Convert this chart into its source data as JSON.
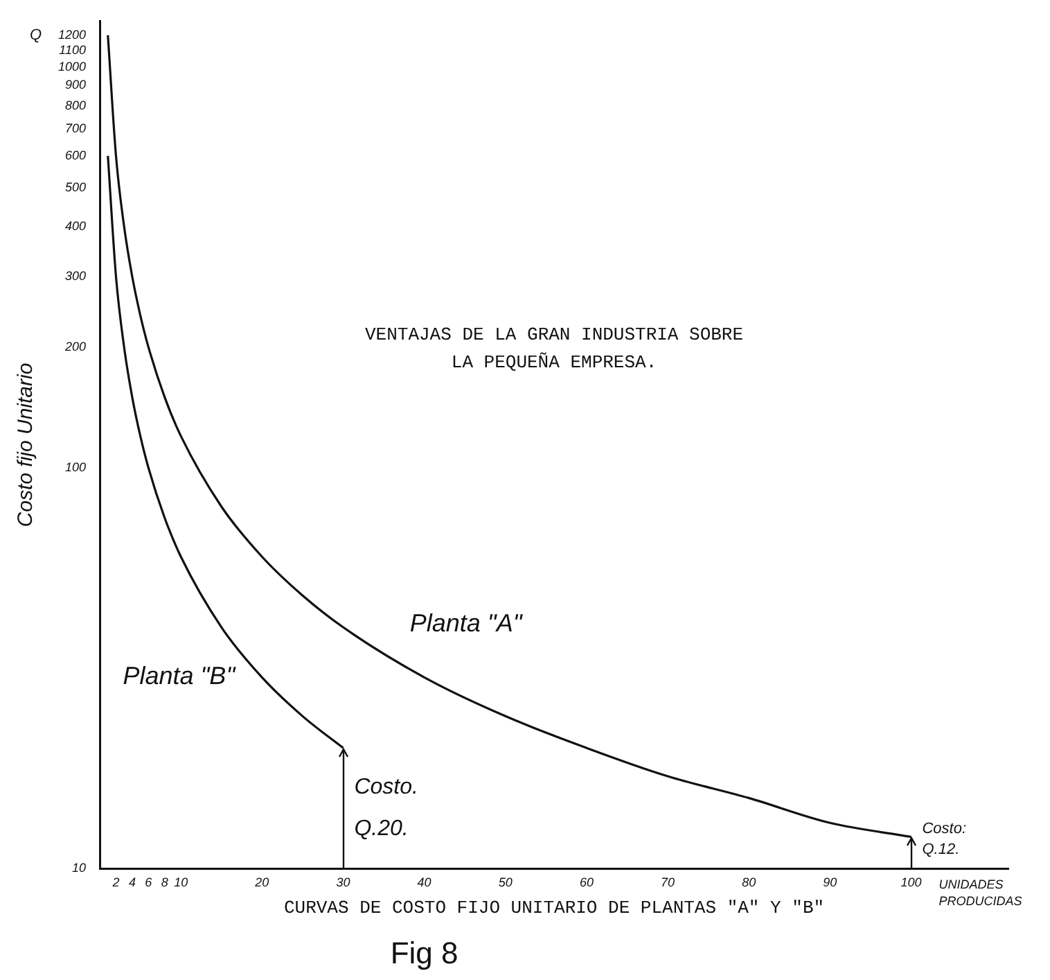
{
  "chart_data": {
    "type": "line",
    "title": "VENTAJAS DE LA GRAN INDUSTRIA SOBRE\nLA PEQUEÑA EMPRESA.",
    "xlabel": "CURVAS DE COSTO FIJO UNITARIO DE PLANTAS \"A\" Y \"B\"",
    "ylabel": "Costo fijo Unitario",
    "log": "y",
    "xlim": [
      0,
      112
    ],
    "ylim": [
      10,
      1300
    ],
    "xticks": [
      2,
      4,
      6,
      8,
      10,
      20,
      30,
      40,
      50,
      60,
      70,
      80,
      90,
      100
    ],
    "yticks": [
      10,
      100,
      200,
      300,
      400,
      500,
      600,
      700,
      800,
      900,
      1000,
      1100,
      1200
    ],
    "grid": false,
    "legend": false,
    "marker": "none",
    "line_style": "solid",
    "series": [
      {
        "name": "Planta \"A\"",
        "color": "#111111",
        "x": [
          1,
          2,
          3,
          4,
          5,
          6,
          8,
          10,
          15,
          20,
          25,
          30,
          40,
          50,
          60,
          70,
          80,
          90,
          100
        ],
        "values": [
          1200,
          600,
          400,
          300,
          240,
          200,
          150,
          120,
          80,
          60,
          48,
          40,
          30,
          24,
          20,
          17,
          15,
          13,
          12
        ]
      },
      {
        "name": "Planta \"B\"",
        "color": "#111111",
        "x": [
          1,
          2,
          3,
          4,
          5,
          6,
          8,
          10,
          15,
          20,
          25,
          30
        ],
        "values": [
          600,
          300,
          200,
          150,
          120,
          100,
          75,
          60,
          40,
          30,
          24,
          20
        ]
      }
    ],
    "annotations": [
      "Fig 8",
      "UNIDADES\nPRODUCIDAS",
      "Q",
      {
        "text": "Costo.\nQ.20.",
        "x": 30,
        "y": 20
      },
      {
        "text": "Costo:\nQ.12.",
        "x": 100,
        "y": 12
      }
    ]
  }
}
